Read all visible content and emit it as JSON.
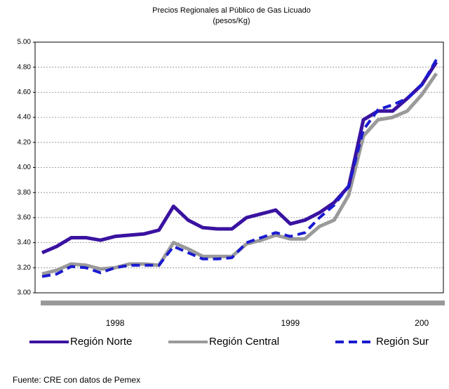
{
  "chart_data": {
    "type": "line",
    "title": "Precios Regionales al Público de Gas Licuado",
    "subtitle": "(pesos/Kg)",
    "categories": [
      null,
      null,
      null,
      null,
      null,
      "1998",
      null,
      null,
      null,
      null,
      null,
      null,
      null,
      null,
      null,
      null,
      null,
      "1999",
      null,
      null,
      null,
      null,
      null,
      null,
      null,
      null,
      "200",
      null
    ],
    "series": [
      {
        "name": "Región Norte",
        "color": "#3a12a0",
        "dashed": false,
        "values": [
          3.32,
          3.37,
          3.44,
          3.44,
          3.42,
          3.45,
          3.46,
          3.47,
          3.5,
          3.69,
          3.58,
          3.52,
          3.51,
          3.51,
          3.6,
          3.63,
          3.66,
          3.55,
          3.58,
          3.64,
          3.72,
          3.85,
          4.38,
          4.45,
          4.45,
          4.55,
          4.66,
          4.84
        ]
      },
      {
        "name": "Región Central",
        "color": "#9a9a9a",
        "dashed": false,
        "values": [
          3.15,
          3.18,
          3.23,
          3.22,
          3.19,
          3.2,
          3.23,
          3.23,
          3.22,
          3.4,
          3.35,
          3.29,
          3.29,
          3.29,
          3.39,
          3.42,
          3.46,
          3.43,
          3.43,
          3.53,
          3.58,
          3.78,
          4.25,
          4.38,
          4.4,
          4.45,
          4.58,
          4.75
        ]
      },
      {
        "name": "Región Sur",
        "color": "#1a1ad0",
        "dashed": true,
        "values": [
          3.13,
          3.15,
          3.21,
          3.2,
          3.16,
          3.2,
          3.22,
          3.22,
          3.22,
          3.37,
          3.32,
          3.27,
          3.27,
          3.28,
          3.4,
          3.44,
          3.48,
          3.45,
          3.48,
          3.6,
          3.7,
          3.85,
          4.3,
          4.46,
          4.5,
          4.55,
          4.66,
          4.86
        ]
      }
    ],
    "ylim": [
      3.0,
      5.0
    ],
    "yticks": [
      {
        "value": 3.0,
        "label": "3.00"
      },
      {
        "value": 3.2,
        "label": "3.20"
      },
      {
        "value": 3.4,
        "label": "3.40"
      },
      {
        "value": 3.6,
        "label": "3.60"
      },
      {
        "value": 3.8,
        "label": "3.80"
      },
      {
        "value": 4.0,
        "label": "4.00"
      },
      {
        "value": 4.2,
        "label": "4.20"
      },
      {
        "value": 4.4,
        "label": "4.40"
      },
      {
        "value": 4.6,
        "label": "4.60"
      },
      {
        "value": 4.8,
        "label": "4.80"
      },
      {
        "value": 5.0,
        "label": "5.00"
      }
    ],
    "grid": true,
    "legend": "bottom",
    "source": "Fuente: CRE con datos de Pemex"
  }
}
